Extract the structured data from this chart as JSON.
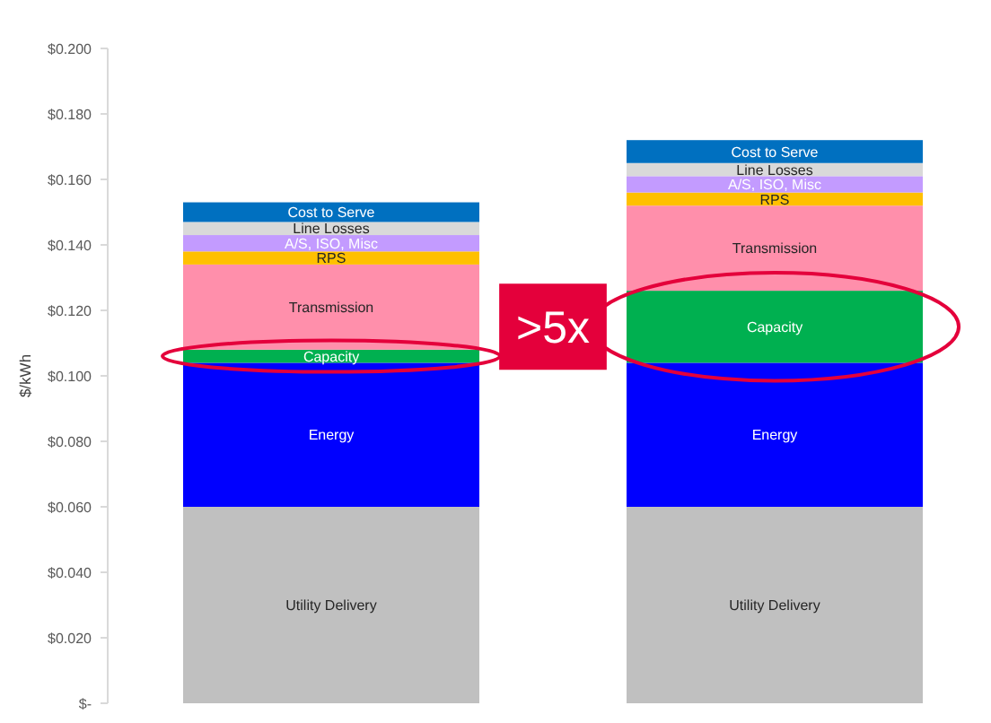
{
  "chart_data": {
    "type": "bar",
    "stacked": true,
    "categories": [
      null,
      null
    ],
    "ylabel": "$/kWh",
    "ylim": [
      0,
      0.2
    ],
    "yticks": [
      {
        "value": 0,
        "label": "$-"
      },
      {
        "value": 0.02,
        "label": "$0.020"
      },
      {
        "value": 0.04,
        "label": "$0.040"
      },
      {
        "value": 0.06,
        "label": "$0.060"
      },
      {
        "value": 0.08,
        "label": "$0.080"
      },
      {
        "value": 0.1,
        "label": "$0.100"
      },
      {
        "value": 0.12,
        "label": "$0.120"
      },
      {
        "value": 0.14,
        "label": "$0.140"
      },
      {
        "value": 0.16,
        "label": "$0.160"
      },
      {
        "value": 0.18,
        "label": "$0.180"
      },
      {
        "value": 0.2,
        "label": "$0.200"
      }
    ],
    "tick_labels": "y",
    "series": [
      {
        "name": "Utility Delivery",
        "color": "#c0c0c0",
        "values": [
          0.06,
          0.06
        ]
      },
      {
        "name": "Energy",
        "color": "#0000ff",
        "values": [
          0.044,
          0.044
        ]
      },
      {
        "name": "Capacity",
        "color": "#00b050",
        "values": [
          0.004,
          0.022
        ]
      },
      {
        "name": "Transmission",
        "color": "#ff8fab",
        "values": [
          0.026,
          0.026
        ]
      },
      {
        "name": "RPS",
        "color": "#ffc000",
        "values": [
          0.004,
          0.004
        ]
      },
      {
        "name": "A/S, ISO, Misc",
        "color": "#c39bff",
        "values": [
          0.005,
          0.005
        ]
      },
      {
        "name": "Line Losses",
        "color": "#d9d9d9",
        "values": [
          0.004,
          0.004
        ]
      },
      {
        "name": "Cost to Serve",
        "color": "#0070c0",
        "values": [
          0.006,
          0.007
        ]
      }
    ],
    "annotations": [
      ">5x"
    ]
  }
}
